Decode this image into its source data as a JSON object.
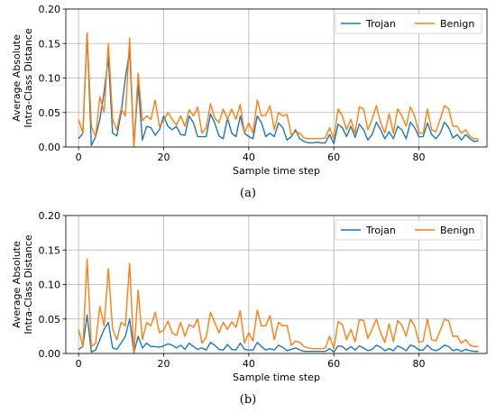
{
  "chart_data": [
    {
      "type": "line",
      "caption": "(a)",
      "xlabel": "Sample time step",
      "ylabel": "Average Absolute Intra-Class Distance",
      "xlim": [
        -3,
        96
      ],
      "ylim": [
        0,
        0.2
      ],
      "xticks": [
        0,
        20,
        40,
        60,
        80
      ],
      "yticks": [
        0.0,
        0.05,
        0.1,
        0.15,
        0.2
      ],
      "ytick_labels": [
        "0.00",
        "0.05",
        "0.10",
        "0.15",
        "0.20"
      ],
      "grid": true,
      "legend_position": "top-right",
      "series": [
        {
          "name": "Trojan",
          "color": "#1f77b4",
          "x_start": 0,
          "x_step": 1,
          "values": [
            0.012,
            0.02,
            0.165,
            0.002,
            0.015,
            0.04,
            0.08,
            0.13,
            0.02,
            0.016,
            0.05,
            0.1,
            0.14,
            0.002,
            0.09,
            0.01,
            0.03,
            0.028,
            0.017,
            0.025,
            0.045,
            0.03,
            0.025,
            0.03,
            0.018,
            0.017,
            0.045,
            0.035,
            0.015,
            0.015,
            0.015,
            0.048,
            0.035,
            0.016,
            0.012,
            0.042,
            0.02,
            0.015,
            0.045,
            0.02,
            0.015,
            0.012,
            0.045,
            0.035,
            0.015,
            0.02,
            0.015,
            0.035,
            0.028,
            0.01,
            0.015,
            0.025,
            0.012,
            0.008,
            0.006,
            0.006,
            0.007,
            0.006,
            0.006,
            0.018,
            0.005,
            0.033,
            0.028,
            0.015,
            0.03,
            0.014,
            0.033,
            0.025,
            0.01,
            0.018,
            0.036,
            0.025,
            0.012,
            0.022,
            0.012,
            0.03,
            0.025,
            0.012,
            0.036,
            0.028,
            0.015,
            0.015,
            0.035,
            0.018,
            0.012,
            0.02,
            0.036,
            0.028,
            0.013,
            0.018,
            0.01,
            0.018,
            0.012,
            0.008,
            0.009
          ]
        },
        {
          "name": "Benign",
          "color": "#ff7f0e",
          "x_start": 0,
          "x_step": 1,
          "values": [
            0.04,
            0.02,
            0.165,
            0.03,
            0.015,
            0.073,
            0.05,
            0.15,
            0.04,
            0.025,
            0.055,
            0.045,
            0.158,
            0.0,
            0.107,
            0.038,
            0.045,
            0.04,
            0.068,
            0.03,
            0.038,
            0.05,
            0.04,
            0.032,
            0.045,
            0.03,
            0.054,
            0.045,
            0.058,
            0.02,
            0.028,
            0.063,
            0.042,
            0.035,
            0.055,
            0.04,
            0.055,
            0.04,
            0.062,
            0.02,
            0.035,
            0.02,
            0.068,
            0.045,
            0.046,
            0.06,
            0.025,
            0.05,
            0.045,
            0.047,
            0.018,
            0.022,
            0.02,
            0.013,
            0.012,
            0.012,
            0.012,
            0.012,
            0.013,
            0.028,
            0.012,
            0.055,
            0.045,
            0.025,
            0.04,
            0.02,
            0.058,
            0.055,
            0.025,
            0.04,
            0.06,
            0.035,
            0.02,
            0.048,
            0.02,
            0.055,
            0.045,
            0.03,
            0.058,
            0.045,
            0.02,
            0.02,
            0.055,
            0.025,
            0.022,
            0.04,
            0.06,
            0.055,
            0.03,
            0.03,
            0.02,
            0.025,
            0.015,
            0.012,
            0.012
          ]
        }
      ]
    },
    {
      "type": "line",
      "caption": "(b)",
      "xlabel": "Sample time step",
      "ylabel": "Average Absolute Intra-Class Distance",
      "xlim": [
        -3,
        96
      ],
      "ylim": [
        0,
        0.2
      ],
      "xticks": [
        0,
        20,
        40,
        60,
        80
      ],
      "yticks": [
        0.0,
        0.05,
        0.1,
        0.15,
        0.2
      ],
      "ytick_labels": [
        "0.00",
        "0.05",
        "0.10",
        "0.15",
        "0.20"
      ],
      "grid": true,
      "legend_position": "top-right",
      "series": [
        {
          "name": "Trojan",
          "color": "#1f77b4",
          "x_start": 0,
          "x_step": 1,
          "values": [
            0.006,
            0.01,
            0.056,
            0.002,
            0.005,
            0.02,
            0.035,
            0.045,
            0.008,
            0.006,
            0.015,
            0.025,
            0.05,
            0.001,
            0.025,
            0.008,
            0.015,
            0.01,
            0.01,
            0.009,
            0.011,
            0.014,
            0.012,
            0.008,
            0.012,
            0.006,
            0.015,
            0.01,
            0.006,
            0.008,
            0.005,
            0.016,
            0.012,
            0.006,
            0.005,
            0.013,
            0.006,
            0.005,
            0.015,
            0.006,
            0.005,
            0.005,
            0.016,
            0.01,
            0.005,
            0.007,
            0.005,
            0.012,
            0.009,
            0.004,
            0.006,
            0.008,
            0.005,
            0.003,
            0.003,
            0.003,
            0.003,
            0.003,
            0.003,
            0.007,
            0.002,
            0.011,
            0.01,
            0.005,
            0.01,
            0.005,
            0.011,
            0.008,
            0.004,
            0.006,
            0.012,
            0.009,
            0.004,
            0.007,
            0.004,
            0.011,
            0.008,
            0.004,
            0.012,
            0.01,
            0.005,
            0.005,
            0.012,
            0.006,
            0.004,
            0.007,
            0.012,
            0.01,
            0.004,
            0.006,
            0.003,
            0.006,
            0.004,
            0.003,
            0.003
          ]
        },
        {
          "name": "Benign",
          "color": "#ff7f0e",
          "x_start": 0,
          "x_step": 1,
          "values": [
            0.035,
            0.01,
            0.137,
            0.01,
            0.015,
            0.068,
            0.04,
            0.123,
            0.035,
            0.02,
            0.045,
            0.04,
            0.131,
            0.0,
            0.092,
            0.02,
            0.045,
            0.04,
            0.06,
            0.03,
            0.034,
            0.047,
            0.03,
            0.026,
            0.045,
            0.025,
            0.042,
            0.038,
            0.05,
            0.015,
            0.024,
            0.06,
            0.045,
            0.03,
            0.045,
            0.035,
            0.046,
            0.038,
            0.062,
            0.015,
            0.03,
            0.018,
            0.063,
            0.04,
            0.04,
            0.055,
            0.02,
            0.045,
            0.04,
            0.041,
            0.012,
            0.018,
            0.016,
            0.01,
            0.008,
            0.007,
            0.007,
            0.007,
            0.008,
            0.025,
            0.007,
            0.046,
            0.042,
            0.02,
            0.035,
            0.017,
            0.049,
            0.048,
            0.022,
            0.035,
            0.05,
            0.03,
            0.016,
            0.043,
            0.017,
            0.048,
            0.041,
            0.025,
            0.05,
            0.04,
            0.016,
            0.018,
            0.05,
            0.02,
            0.018,
            0.033,
            0.05,
            0.047,
            0.025,
            0.025,
            0.015,
            0.02,
            0.012,
            0.01,
            0.01
          ]
        }
      ]
    }
  ]
}
